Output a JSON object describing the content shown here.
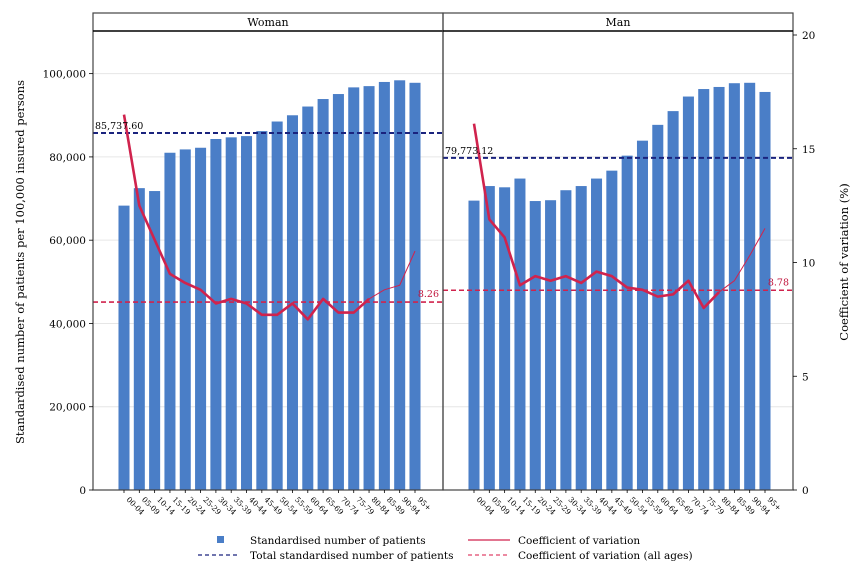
{
  "chart_data": {
    "type": "bar",
    "panels": [
      "Woman",
      "Man"
    ],
    "categories": [
      "00-04",
      "05-09",
      "10-14",
      "15-19",
      "20-24",
      "25-29",
      "30-34",
      "35-39",
      "40-44",
      "45-49",
      "50-54",
      "55-59",
      "60-64",
      "65-69",
      "70-74",
      "75-79",
      "80-84",
      "85-89",
      "90-94",
      "95+"
    ],
    "ylabel": "Standardised number of patients per 100,000 insured persons",
    "y2label": "Coefficient of variation (%)",
    "ylim": [
      0,
      110000
    ],
    "y2lim": [
      0,
      20
    ],
    "yticks": [
      0,
      20000,
      40000,
      60000,
      80000,
      100000
    ],
    "yticklabels": [
      "0",
      "20,000",
      "40,000",
      "60,000",
      "80,000",
      "100,000"
    ],
    "y2ticks": [
      0,
      5,
      10,
      15,
      20
    ],
    "y2ticklabels": [
      "0",
      "5",
      "10",
      "15",
      "20"
    ],
    "series": [
      {
        "name": "Standardised number of patients",
        "kind": "bar",
        "color": "#4a7ec7",
        "Woman": [
          68300,
          72500,
          71800,
          81000,
          81800,
          82200,
          84300,
          84700,
          85000,
          86200,
          88500,
          90000,
          92100,
          93900,
          95100,
          96700,
          97000,
          98000,
          98400,
          97800
        ],
        "Man": [
          69500,
          73000,
          72700,
          74800,
          69400,
          69600,
          72000,
          73000,
          74800,
          76700,
          80300,
          83900,
          87700,
          91000,
          94500,
          96300,
          96800,
          97700,
          97800,
          95600
        ]
      },
      {
        "name": "Coefficient of variation",
        "kind": "line",
        "color": "#d0234d",
        "Woman": [
          16.5,
          12.5,
          11.0,
          9.5,
          9.1,
          8.8,
          8.2,
          8.4,
          8.2,
          7.7,
          7.7,
          8.2,
          7.5,
          8.4,
          7.8,
          7.8,
          8.4,
          8.8,
          9.0,
          10.5
        ],
        "Man": [
          16.1,
          11.9,
          11.1,
          9.0,
          9.4,
          9.2,
          9.4,
          9.1,
          9.6,
          9.4,
          8.9,
          8.8,
          8.5,
          8.6,
          9.2,
          8.0,
          8.7,
          9.2,
          10.3,
          11.5
        ]
      }
    ],
    "reference_lines": {
      "Woman": {
        "total": 85737.6,
        "total_label": "85,737.60",
        "cv_all": 8.26,
        "cv_label": "8.26"
      },
      "Man": {
        "total": 79773.12,
        "total_label": "79,773.12",
        "cv_all": 8.78,
        "cv_label": "8.78"
      }
    },
    "legend": {
      "placement": "bottom",
      "items": [
        {
          "label": "Standardised number of patients",
          "symbol": "square",
          "color": "#4a7ec7"
        },
        {
          "label": "Coefficient of variation",
          "symbol": "line",
          "color": "#d0234d"
        },
        {
          "label": "Total standardised number of patients",
          "symbol": "dashed",
          "color": "#1a237e"
        },
        {
          "label": "Coefficient of variation (all ages)",
          "symbol": "dashed",
          "color": "#e0446a"
        }
      ]
    },
    "grid": true
  }
}
